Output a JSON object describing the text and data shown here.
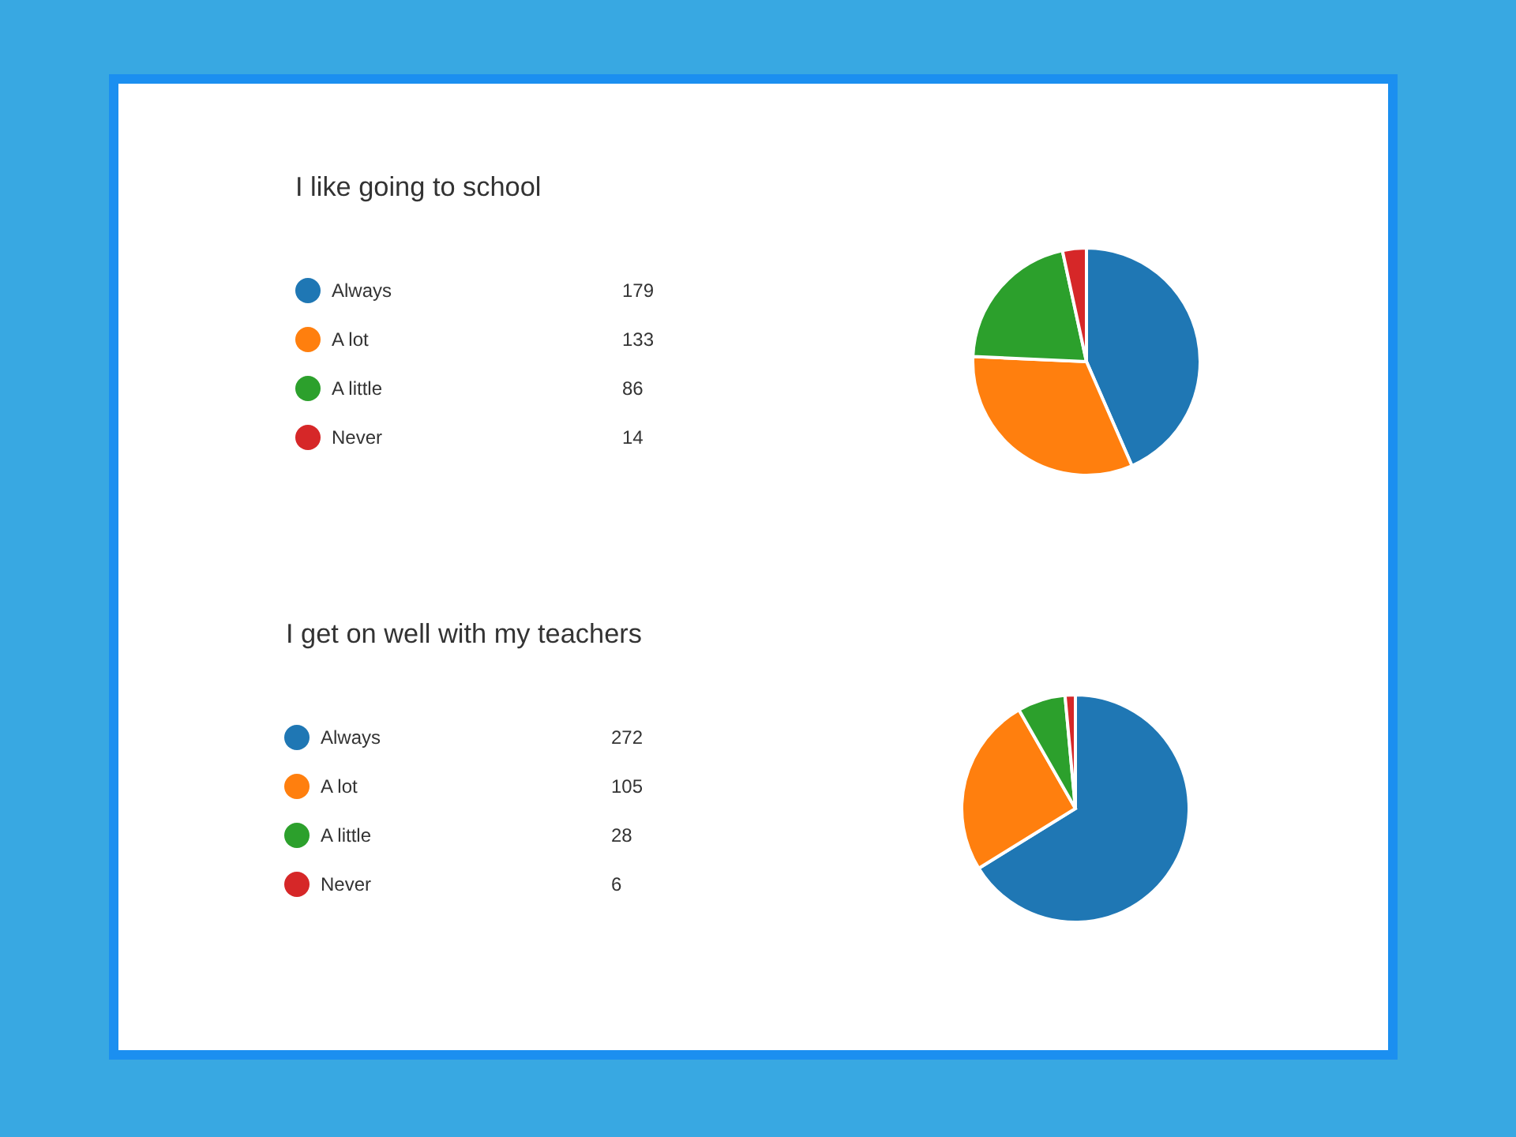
{
  "chart_data": [
    {
      "type": "pie",
      "title": "I like going to school",
      "categories": [
        "Always",
        "A lot",
        "A little",
        "Never"
      ],
      "values": [
        179,
        133,
        86,
        14
      ],
      "colors": [
        "#1f77b4",
        "#ff7f0e",
        "#2ca02c",
        "#d62728"
      ],
      "legend": "left",
      "data_labels": true
    },
    {
      "type": "pie",
      "title": "I get on well with my teachers",
      "categories": [
        "Always",
        "A lot",
        "A little",
        "Never"
      ],
      "values": [
        272,
        105,
        28,
        6
      ],
      "colors": [
        "#1f77b4",
        "#ff7f0e",
        "#2ca02c",
        "#d62728"
      ],
      "legend": "left",
      "data_labels": true
    }
  ]
}
